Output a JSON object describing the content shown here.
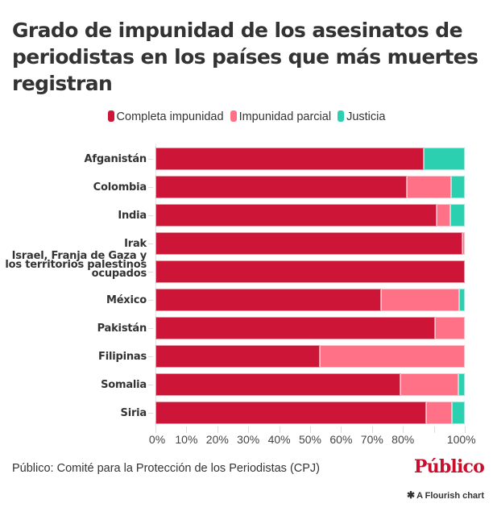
{
  "title": "Grado de impunidad de los asesinatos de periodistas en los países que más muertes registran",
  "source": "Público: Comité para la Protección de los Periodistas (CPJ)",
  "brand": {
    "logo_text": "Público",
    "logo_color": "#c8102e",
    "flourish_text": "A Flourish chart",
    "flourish_icon": "asterisk-icon"
  },
  "colors": {
    "Completa impunidad": "#cd1637",
    "Impunidad parcial": "#ff7186",
    "Justicia": "#2ad0b0"
  },
  "chart_data": {
    "type": "bar",
    "orientation": "horizontal",
    "stacked": true,
    "title": "Grado de impunidad de los asesinatos de periodistas en los países que más muertes registran",
    "xlabel": "",
    "ylabel": "",
    "xlim": [
      0,
      100
    ],
    "x_tick_labels": [
      "0%",
      "10%",
      "20%",
      "30%",
      "40%",
      "50%",
      "60%",
      "70%",
      "80%",
      "",
      "100%"
    ],
    "x_ticks": [
      0,
      10,
      20,
      30,
      40,
      50,
      60,
      70,
      80,
      90,
      100
    ],
    "legend": [
      "Completa impunidad",
      "Impunidad parcial",
      "Justicia"
    ],
    "legend_position": "top-center",
    "grid": false,
    "categories": [
      "Afganistán",
      "Colombia",
      "India",
      "Irak",
      "Israel, Franja de Gaza y los territorios palestinos ocupados",
      "México",
      "Pakistán",
      "Filipinas",
      "Somalia",
      "Siria"
    ],
    "series": [
      {
        "name": "Completa impunidad",
        "values": [
          86.6,
          81.3,
          90.9,
          99.1,
          100,
          73.0,
          90.3,
          53.2,
          79.2,
          87.5
        ]
      },
      {
        "name": "Impunidad parcial",
        "values": [
          0,
          14.4,
          4.5,
          0.9,
          0,
          25.3,
          9.7,
          46.8,
          18.7,
          8.3
        ]
      },
      {
        "name": "Justicia",
        "values": [
          13.4,
          4.3,
          4.6,
          0,
          0,
          1.7,
          0,
          0,
          2.1,
          4.2
        ]
      }
    ]
  }
}
